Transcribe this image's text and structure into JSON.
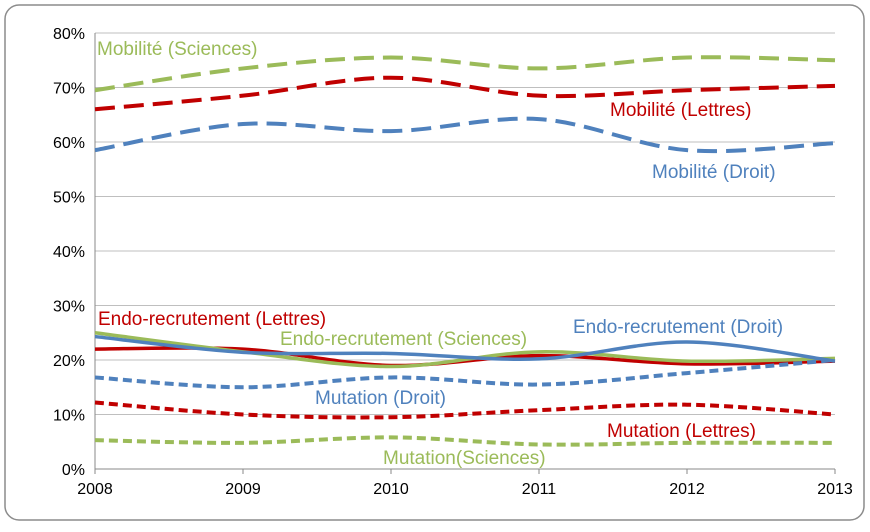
{
  "chart_data": {
    "type": "line",
    "x": [
      2008,
      2009,
      2010,
      2011,
      2012,
      2013
    ],
    "xlim": [
      2008,
      2013
    ],
    "xticks": [
      2008,
      2009,
      2010,
      2011,
      2012,
      2013
    ],
    "ylim": [
      0,
      80
    ],
    "yticks": [
      {
        "value": 0,
        "label": "0%"
      },
      {
        "value": 10,
        "label": "10%"
      },
      {
        "value": 20,
        "label": "20%"
      },
      {
        "value": 30,
        "label": "30%"
      },
      {
        "value": 40,
        "label": "40%"
      },
      {
        "value": 50,
        "label": "50%"
      },
      {
        "value": 60,
        "label": "60%"
      },
      {
        "value": 70,
        "label": "70%"
      },
      {
        "value": 80,
        "label": "80%"
      }
    ],
    "grid": true,
    "series": [
      {
        "name": "Mobilité (Sciences)",
        "color": "#9bbb59",
        "line_style": "dashed",
        "values": [
          69.5,
          73.5,
          75.5,
          73.5,
          75.5,
          75
        ]
      },
      {
        "name": "Mobilité (Lettres)",
        "color": "#c00000",
        "line_style": "dashed",
        "values": [
          66,
          68.5,
          71.8,
          68.5,
          69.5,
          70.3
        ]
      },
      {
        "name": "Mobilité (Droit)",
        "color": "#4f81bd",
        "line_style": "dashed",
        "values": [
          58.5,
          63.3,
          62,
          64.2,
          58.5,
          59.8
        ]
      },
      {
        "name": "Endo-recrutement (Lettres)",
        "color": "#c00000",
        "line_style": "solid",
        "values": [
          22,
          22,
          19,
          20.8,
          19.3,
          19.8
        ]
      },
      {
        "name": "Endo-recrutement (Sciences)",
        "color": "#9bbb59",
        "line_style": "solid",
        "values": [
          25,
          21.5,
          18.8,
          21.5,
          19.8,
          20.3
        ]
      },
      {
        "name": "Endo-recrutement (Droit)",
        "color": "#4f81bd",
        "line_style": "solid",
        "values": [
          24.3,
          21.4,
          21.2,
          20.2,
          23.3,
          19.8
        ]
      },
      {
        "name": "Mutation (Droit)",
        "color": "#4f81bd",
        "line_style": "dotted",
        "values": [
          16.8,
          15,
          16.8,
          15.5,
          17.6,
          20
        ]
      },
      {
        "name": "Mutation (Lettres)",
        "color": "#c00000",
        "line_style": "dotted",
        "values": [
          12.2,
          10,
          9.5,
          10.8,
          11.8,
          10
        ]
      },
      {
        "name": "Mutation(Sciences)",
        "color": "#9bbb59",
        "line_style": "dotted",
        "values": [
          5.3,
          4.8,
          5.8,
          4.5,
          4.8,
          4.8
        ]
      }
    ]
  }
}
